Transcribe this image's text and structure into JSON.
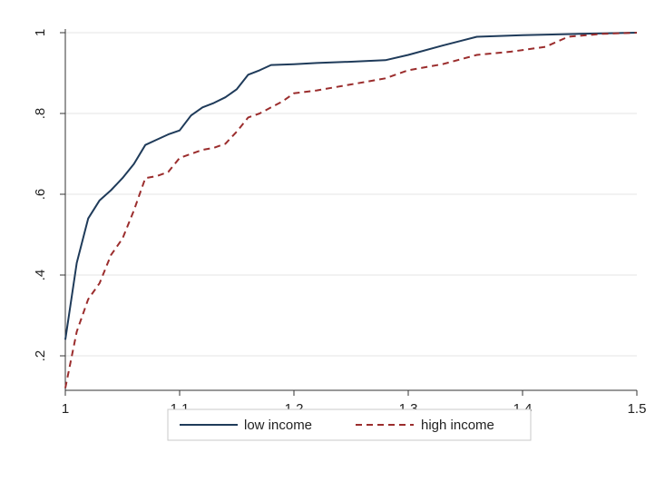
{
  "chart_data": {
    "type": "line",
    "title": "",
    "xlabel": "",
    "ylabel": "",
    "xlim": [
      1,
      1.5
    ],
    "ylim": [
      0.12,
      1.0
    ],
    "x_ticks": [
      1,
      1.1,
      1.2,
      1.3,
      1.4,
      1.5
    ],
    "x_tick_labels": [
      "1",
      "1.1",
      "1.2",
      "1.3",
      "1.4",
      "1.5"
    ],
    "y_ticks": [
      0.2,
      0.4,
      0.6,
      0.8,
      1.0
    ],
    "y_tick_labels": [
      ".2",
      ".4",
      ".6",
      ".8",
      "1"
    ],
    "grid": "horizontal",
    "legend_position": "bottom",
    "series": [
      {
        "name": "low income",
        "color": "#1f3b5a",
        "dash": "solid",
        "points": [
          [
            1.0,
            0.24
          ],
          [
            1.01,
            0.43
          ],
          [
            1.02,
            0.54
          ],
          [
            1.03,
            0.585
          ],
          [
            1.04,
            0.61
          ],
          [
            1.05,
            0.64
          ],
          [
            1.06,
            0.675
          ],
          [
            1.07,
            0.722
          ],
          [
            1.08,
            0.735
          ],
          [
            1.09,
            0.748
          ],
          [
            1.1,
            0.758
          ],
          [
            1.11,
            0.795
          ],
          [
            1.12,
            0.815
          ],
          [
            1.13,
            0.826
          ],
          [
            1.14,
            0.84
          ],
          [
            1.15,
            0.86
          ],
          [
            1.16,
            0.896
          ],
          [
            1.17,
            0.907
          ],
          [
            1.18,
            0.92
          ],
          [
            1.2,
            0.922
          ],
          [
            1.22,
            0.925
          ],
          [
            1.25,
            0.928
          ],
          [
            1.28,
            0.932
          ],
          [
            1.3,
            0.945
          ],
          [
            1.33,
            0.968
          ],
          [
            1.36,
            0.99
          ],
          [
            1.4,
            0.994
          ],
          [
            1.45,
            0.997
          ],
          [
            1.5,
            1.0
          ]
        ]
      },
      {
        "name": "high income",
        "color": "#9b2d2d",
        "dash": "dashed",
        "points": [
          [
            1.0,
            0.12
          ],
          [
            1.01,
            0.26
          ],
          [
            1.02,
            0.34
          ],
          [
            1.03,
            0.38
          ],
          [
            1.04,
            0.45
          ],
          [
            1.05,
            0.49
          ],
          [
            1.06,
            0.56
          ],
          [
            1.07,
            0.64
          ],
          [
            1.08,
            0.645
          ],
          [
            1.09,
            0.655
          ],
          [
            1.1,
            0.69
          ],
          [
            1.11,
            0.7
          ],
          [
            1.12,
            0.71
          ],
          [
            1.13,
            0.715
          ],
          [
            1.14,
            0.725
          ],
          [
            1.15,
            0.755
          ],
          [
            1.16,
            0.79
          ],
          [
            1.17,
            0.8
          ],
          [
            1.18,
            0.815
          ],
          [
            1.19,
            0.83
          ],
          [
            1.2,
            0.85
          ],
          [
            1.22,
            0.857
          ],
          [
            1.25,
            0.872
          ],
          [
            1.28,
            0.887
          ],
          [
            1.3,
            0.907
          ],
          [
            1.33,
            0.922
          ],
          [
            1.36,
            0.945
          ],
          [
            1.39,
            0.953
          ],
          [
            1.42,
            0.965
          ],
          [
            1.44,
            0.99
          ],
          [
            1.47,
            0.997
          ],
          [
            1.5,
            1.0
          ]
        ]
      }
    ]
  },
  "legend": {
    "items": [
      {
        "label": "low income"
      },
      {
        "label": "high income"
      }
    ]
  }
}
